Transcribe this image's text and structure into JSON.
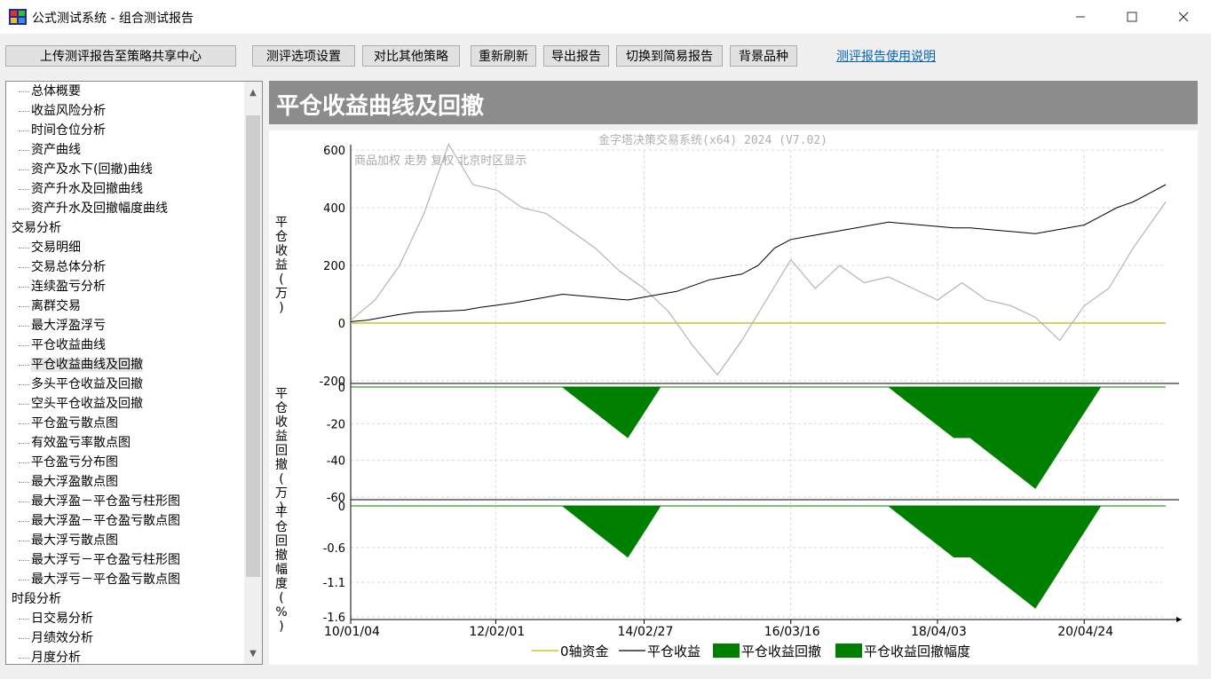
{
  "window": {
    "title": "公式测试系统 - 组合测试报告",
    "minimize_icon": "minimize-icon",
    "maximize_icon": "maximize-icon",
    "close_icon": "close-icon"
  },
  "toolbar": {
    "upload": "上传测评报告至策略共享中心",
    "options": "测评选项设置",
    "compare": "对比其他策略",
    "refresh": "重新刷新",
    "export": "导出报告",
    "simple": "切换到简易报告",
    "background": "背景品种",
    "help_link": "测评报告使用说明"
  },
  "tree": {
    "items": [
      {
        "label": "总体概要",
        "level": 1
      },
      {
        "label": "收益风险分析",
        "level": 1
      },
      {
        "label": "时间仓位分析",
        "level": 1
      },
      {
        "label": "资产曲线",
        "level": 1
      },
      {
        "label": "资产及水下(回撤)曲线",
        "level": 1
      },
      {
        "label": "资产升水及回撤曲线",
        "level": 1
      },
      {
        "label": "资产升水及回撤幅度曲线",
        "level": 1
      },
      {
        "label": "交易分析",
        "level": 0
      },
      {
        "label": "交易明细",
        "level": 1
      },
      {
        "label": "交易总体分析",
        "level": 1
      },
      {
        "label": "连续盈亏分析",
        "level": 1
      },
      {
        "label": "离群交易",
        "level": 1
      },
      {
        "label": "最大浮盈浮亏",
        "level": 1
      },
      {
        "label": "平仓收益曲线",
        "level": 1
      },
      {
        "label": "平仓收益曲线及回撤",
        "level": 1,
        "selected": true
      },
      {
        "label": "多头平仓收益及回撤",
        "level": 1
      },
      {
        "label": "空头平仓收益及回撤",
        "level": 1
      },
      {
        "label": "平仓盈亏散点图",
        "level": 1
      },
      {
        "label": "有效盈亏率散点图",
        "level": 1
      },
      {
        "label": "平仓盈亏分布图",
        "level": 1
      },
      {
        "label": "最大浮盈散点图",
        "level": 1
      },
      {
        "label": "最大浮盈－平仓盈亏柱形图",
        "level": 1
      },
      {
        "label": "最大浮盈－平仓盈亏散点图",
        "level": 1
      },
      {
        "label": "最大浮亏散点图",
        "level": 1
      },
      {
        "label": "最大浮亏－平仓盈亏柱形图",
        "level": 1
      },
      {
        "label": "最大浮亏－平仓盈亏散点图",
        "level": 1
      },
      {
        "label": "时段分析",
        "level": 0
      },
      {
        "label": "日交易分析",
        "level": 1
      },
      {
        "label": "月绩效分析",
        "level": 1
      },
      {
        "label": "月度分析",
        "level": 1
      }
    ]
  },
  "panel": {
    "title": "平仓收益曲线及回撤"
  },
  "chart_data": {
    "type": "line",
    "watermark": "金字塔决策交易系统(x64) 2024 (V7.02)",
    "background_label": "商品加权 走势 复权 北京时区显示",
    "x_tick_labels": [
      "10/01/04",
      "12/02/01",
      "14/02/27",
      "16/03/16",
      "18/04/03",
      "20/04/24"
    ],
    "grid": true,
    "legend_position": "bottom",
    "legend": [
      "0轴资金",
      "平仓收益",
      "平仓收益回撤",
      "平仓收益回撤幅度"
    ],
    "colors": {
      "zero": "#c8b400",
      "profit": "#000000",
      "drawdown": "#008000",
      "background": "#b4b4b4"
    },
    "panels": [
      {
        "ylabel": "平仓收益(万)",
        "ylim": [
          -200,
          600
        ],
        "yticks": [
          600,
          400,
          200,
          0,
          -200
        ],
        "series": [
          {
            "name": "平仓收益",
            "x": [
              0,
              0.02,
              0.04,
              0.06,
              0.08,
              0.1,
              0.12,
              0.14,
              0.16,
              0.18,
              0.2,
              0.22,
              0.24,
              0.26,
              0.28,
              0.3,
              0.32,
              0.34,
              0.36,
              0.38,
              0.4,
              0.42,
              0.44,
              0.46,
              0.48,
              0.5,
              0.52,
              0.54,
              0.56,
              0.58,
              0.6,
              0.62,
              0.64,
              0.66,
              0.68,
              0.7,
              0.72,
              0.74,
              0.76,
              0.78,
              0.8,
              0.82,
              0.84,
              0.86,
              0.88,
              0.9,
              0.92,
              0.94,
              0.96,
              0.98,
              1.0
            ],
            "y": [
              5,
              10,
              20,
              30,
              38,
              40,
              42,
              45,
              55,
              62,
              70,
              80,
              90,
              100,
              95,
              90,
              85,
              80,
              90,
              100,
              110,
              130,
              150,
              160,
              170,
              200,
              260,
              290,
              300,
              310,
              320,
              330,
              340,
              350,
              345,
              340,
              335,
              330,
              330,
              325,
              320,
              315,
              310,
              320,
              330,
              340,
              370,
              400,
              420,
              450,
              480
            ]
          },
          {
            "name": "商品加权",
            "x": [
              0,
              0.03,
              0.06,
              0.09,
              0.12,
              0.15,
              0.18,
              0.21,
              0.24,
              0.27,
              0.3,
              0.33,
              0.36,
              0.39,
              0.42,
              0.45,
              0.48,
              0.51,
              0.54,
              0.57,
              0.6,
              0.63,
              0.66,
              0.69,
              0.72,
              0.75,
              0.78,
              0.81,
              0.84,
              0.87,
              0.9,
              0.93,
              0.96,
              1.0
            ],
            "y": [
              10,
              80,
              200,
              380,
              620,
              480,
              460,
              400,
              380,
              320,
              260,
              180,
              120,
              40,
              -80,
              -180,
              -60,
              80,
              220,
              120,
              200,
              140,
              160,
              120,
              80,
              140,
              80,
              60,
              20,
              -60,
              60,
              120,
              260,
              420
            ]
          }
        ]
      },
      {
        "ylabel": "平仓收益回撤(万)",
        "ylim": [
          -60,
          0
        ],
        "yticks": [
          0,
          -20,
          -40,
          -60
        ]
      },
      {
        "ylabel": "平仓回撤幅度(%)",
        "ylim": [
          -1.6,
          0
        ],
        "yticks": [
          "0",
          "-0.6",
          "-1.1",
          "-1.6"
        ]
      }
    ]
  }
}
